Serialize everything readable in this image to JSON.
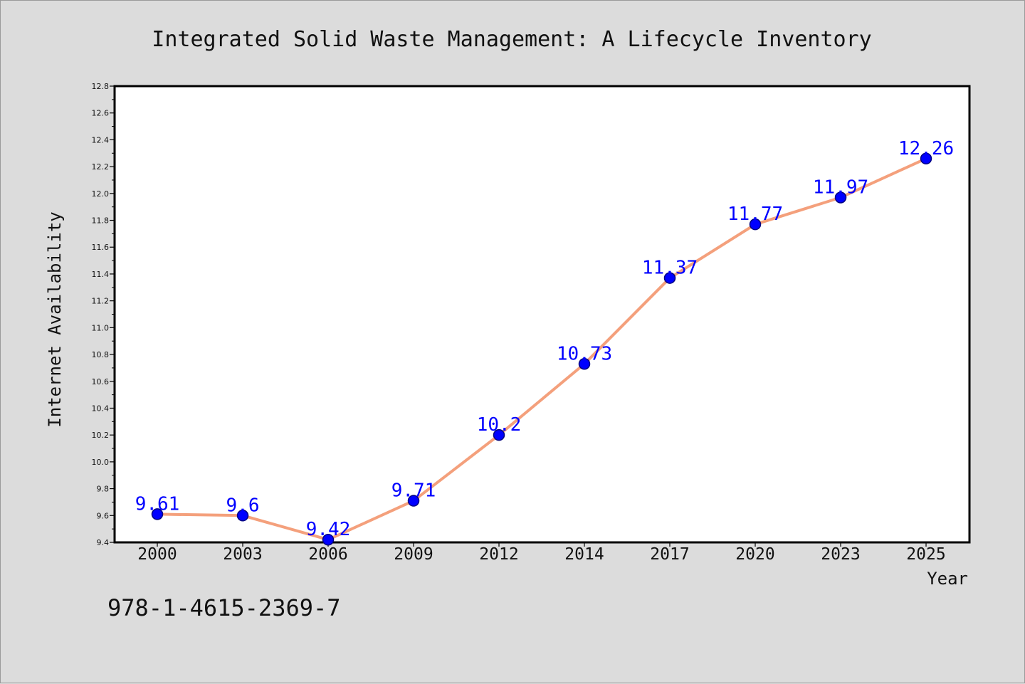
{
  "isbn": "978-1-4615-2369-7",
  "colors": {
    "background": "#dcdcdc",
    "plot_background": "#ffffff",
    "line": "#f4a07c",
    "marker_fill": "#0000ff",
    "marker_edge": "#000080",
    "data_label": "#0000ff"
  },
  "chart_data": {
    "type": "line",
    "title": "Integrated Solid Waste Management: A Lifecycle Inventory",
    "xlabel": "Year",
    "ylabel": "Internet Availability",
    "categories": [
      "2000",
      "2003",
      "2006",
      "2009",
      "2012",
      "2014",
      "2017",
      "2020",
      "2023",
      "2025"
    ],
    "series": [
      {
        "values": [
          9.61,
          9.6,
          9.42,
          9.71,
          10.2,
          10.73,
          11.37,
          11.77,
          11.97,
          12.26
        ],
        "labels": [
          "9.61",
          "9.6",
          "9.42",
          "9.71",
          "10.2",
          "10.73",
          "11.37",
          "11.77",
          "11.97",
          "12.26"
        ]
      }
    ],
    "ylim": [
      9.4,
      12.8
    ],
    "yticks": [
      "9.4",
      "9.6",
      "9.8",
      "10.0",
      "10.2",
      "10.4",
      "10.6",
      "10.8",
      "11.0",
      "11.2",
      "11.4",
      "11.6",
      "11.8",
      "12.0",
      "12.2",
      "12.4",
      "12.6",
      "12.8"
    ],
    "grid": false,
    "legend": "none"
  }
}
